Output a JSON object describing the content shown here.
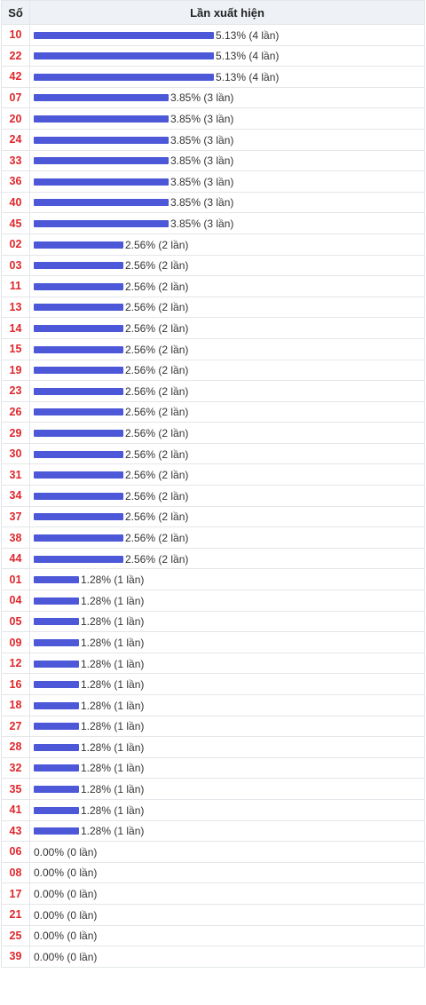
{
  "header": {
    "col_number": "Số",
    "col_frequency": "Lần xuất hiện"
  },
  "chart_data": {
    "type": "bar",
    "orientation": "horizontal",
    "bar_color": "#4c58d7",
    "number_color": "#e0262b",
    "max_percent": 5.13,
    "rows": [
      {
        "number": "10",
        "percent": 5.13,
        "label": "5.13% (4 lần)"
      },
      {
        "number": "22",
        "percent": 5.13,
        "label": "5.13% (4 lần)"
      },
      {
        "number": "42",
        "percent": 5.13,
        "label": "5.13% (4 lần)"
      },
      {
        "number": "07",
        "percent": 3.85,
        "label": "3.85% (3 lần)"
      },
      {
        "number": "20",
        "percent": 3.85,
        "label": "3.85% (3 lần)"
      },
      {
        "number": "24",
        "percent": 3.85,
        "label": "3.85% (3 lần)"
      },
      {
        "number": "33",
        "percent": 3.85,
        "label": "3.85% (3 lần)"
      },
      {
        "number": "36",
        "percent": 3.85,
        "label": "3.85% (3 lần)"
      },
      {
        "number": "40",
        "percent": 3.85,
        "label": "3.85% (3 lần)"
      },
      {
        "number": "45",
        "percent": 3.85,
        "label": "3.85% (3 lần)"
      },
      {
        "number": "02",
        "percent": 2.56,
        "label": "2.56% (2 lần)"
      },
      {
        "number": "03",
        "percent": 2.56,
        "label": "2.56% (2 lần)"
      },
      {
        "number": "11",
        "percent": 2.56,
        "label": "2.56% (2 lần)"
      },
      {
        "number": "13",
        "percent": 2.56,
        "label": "2.56% (2 lần)"
      },
      {
        "number": "14",
        "percent": 2.56,
        "label": "2.56% (2 lần)"
      },
      {
        "number": "15",
        "percent": 2.56,
        "label": "2.56% (2 lần)"
      },
      {
        "number": "19",
        "percent": 2.56,
        "label": "2.56% (2 lần)"
      },
      {
        "number": "23",
        "percent": 2.56,
        "label": "2.56% (2 lần)"
      },
      {
        "number": "26",
        "percent": 2.56,
        "label": "2.56% (2 lần)"
      },
      {
        "number": "29",
        "percent": 2.56,
        "label": "2.56% (2 lần)"
      },
      {
        "number": "30",
        "percent": 2.56,
        "label": "2.56% (2 lần)"
      },
      {
        "number": "31",
        "percent": 2.56,
        "label": "2.56% (2 lần)"
      },
      {
        "number": "34",
        "percent": 2.56,
        "label": "2.56% (2 lần)"
      },
      {
        "number": "37",
        "percent": 2.56,
        "label": "2.56% (2 lần)"
      },
      {
        "number": "38",
        "percent": 2.56,
        "label": "2.56% (2 lần)"
      },
      {
        "number": "44",
        "percent": 2.56,
        "label": "2.56% (2 lần)"
      },
      {
        "number": "01",
        "percent": 1.28,
        "label": "1.28% (1 lần)"
      },
      {
        "number": "04",
        "percent": 1.28,
        "label": "1.28% (1 lần)"
      },
      {
        "number": "05",
        "percent": 1.28,
        "label": "1.28% (1 lần)"
      },
      {
        "number": "09",
        "percent": 1.28,
        "label": "1.28% (1 lần)"
      },
      {
        "number": "12",
        "percent": 1.28,
        "label": "1.28% (1 lần)"
      },
      {
        "number": "16",
        "percent": 1.28,
        "label": "1.28% (1 lần)"
      },
      {
        "number": "18",
        "percent": 1.28,
        "label": "1.28% (1 lần)"
      },
      {
        "number": "27",
        "percent": 1.28,
        "label": "1.28% (1 lần)"
      },
      {
        "number": "28",
        "percent": 1.28,
        "label": "1.28% (1 lần)"
      },
      {
        "number": "32",
        "percent": 1.28,
        "label": "1.28% (1 lần)"
      },
      {
        "number": "35",
        "percent": 1.28,
        "label": "1.28% (1 lần)"
      },
      {
        "number": "41",
        "percent": 1.28,
        "label": "1.28% (1 lần)"
      },
      {
        "number": "43",
        "percent": 1.28,
        "label": "1.28% (1 lần)"
      },
      {
        "number": "06",
        "percent": 0.0,
        "label": "0.00% (0 lần)"
      },
      {
        "number": "08",
        "percent": 0.0,
        "label": "0.00% (0 lần)"
      },
      {
        "number": "17",
        "percent": 0.0,
        "label": "0.00% (0 lần)"
      },
      {
        "number": "21",
        "percent": 0.0,
        "label": "0.00% (0 lần)"
      },
      {
        "number": "25",
        "percent": 0.0,
        "label": "0.00% (0 lần)"
      },
      {
        "number": "39",
        "percent": 0.0,
        "label": "0.00% (0 lần)"
      }
    ]
  }
}
